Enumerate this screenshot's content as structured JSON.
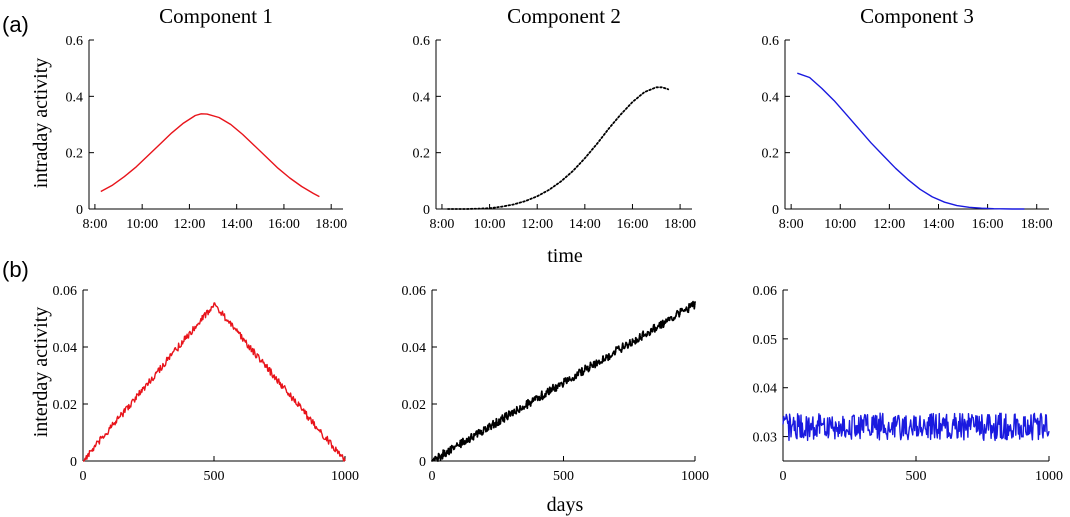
{
  "figure": {
    "panel_labels": [
      "(a)",
      "(b)"
    ],
    "row_a_ylabel": "intraday activity",
    "row_a_xlabel": "time",
    "row_b_ylabel": "interday activity",
    "row_b_xlabel": "days"
  },
  "chart_data": [
    {
      "type": "line",
      "title": "Component 1",
      "xlabel": "",
      "ylabel": "intraday activity",
      "x_unit": "hour",
      "x": [
        8.25,
        8.75,
        9.25,
        9.75,
        10.25,
        10.75,
        11.25,
        11.75,
        12.25,
        12.5,
        12.75,
        13.25,
        13.75,
        14.25,
        14.75,
        15.25,
        15.75,
        16.25,
        16.75,
        17.25,
        17.5
      ],
      "y": [
        0.062,
        0.085,
        0.115,
        0.15,
        0.19,
        0.23,
        0.27,
        0.305,
        0.332,
        0.338,
        0.337,
        0.325,
        0.3,
        0.265,
        0.225,
        0.185,
        0.145,
        0.11,
        0.08,
        0.055,
        0.044
      ],
      "xlim": [
        7.75,
        18.5
      ],
      "ylim": [
        0,
        0.6
      ],
      "xticks": [
        "8:00",
        "10:00",
        "12:00",
        "14:00",
        "16:00",
        "18:00"
      ],
      "xtick_values": [
        8,
        10,
        12,
        14,
        16,
        18
      ],
      "yticks": [
        "0",
        "0.2",
        "0.4",
        "0.6"
      ],
      "ytick_values": [
        0,
        0.2,
        0.4,
        0.6
      ],
      "color": "#e8141b",
      "style": "solid"
    },
    {
      "type": "line",
      "title": "Component 2",
      "xlabel": "time",
      "ylabel": "",
      "x_unit": "hour",
      "x": [
        8.25,
        9.0,
        9.5,
        10.0,
        10.5,
        11.0,
        11.5,
        12.0,
        12.5,
        13.0,
        13.5,
        14.0,
        14.5,
        15.0,
        15.5,
        16.0,
        16.5,
        17.0,
        17.25,
        17.5
      ],
      "y": [
        0.0,
        0.0,
        0.001,
        0.003,
        0.008,
        0.016,
        0.028,
        0.045,
        0.068,
        0.098,
        0.135,
        0.18,
        0.23,
        0.285,
        0.335,
        0.38,
        0.415,
        0.432,
        0.432,
        0.425
      ],
      "xlim": [
        7.75,
        18.5
      ],
      "ylim": [
        0,
        0.6
      ],
      "xticks": [
        "8:00",
        "10:00",
        "12:00",
        "14:00",
        "16:00",
        "18:00"
      ],
      "xtick_values": [
        8,
        10,
        12,
        14,
        16,
        18
      ],
      "yticks": [
        "0",
        "0.2",
        "0.4",
        "0.6"
      ],
      "ytick_values": [
        0,
        0.2,
        0.4,
        0.6
      ],
      "color": "#000000",
      "style": "dotted"
    },
    {
      "type": "line",
      "title": "Component 3",
      "xlabel": "",
      "ylabel": "",
      "x_unit": "hour",
      "x": [
        8.25,
        8.75,
        9.25,
        9.75,
        10.25,
        10.75,
        11.25,
        11.75,
        12.25,
        12.75,
        13.25,
        13.75,
        14.25,
        14.75,
        15.25,
        15.75,
        16.25,
        17.0,
        17.5
      ],
      "y": [
        0.482,
        0.467,
        0.428,
        0.385,
        0.335,
        0.285,
        0.235,
        0.19,
        0.145,
        0.105,
        0.07,
        0.043,
        0.024,
        0.012,
        0.006,
        0.003,
        0.001,
        0.0,
        0.0
      ],
      "xlim": [
        7.75,
        18.5
      ],
      "ylim": [
        0,
        0.6
      ],
      "xticks": [
        "8:00",
        "10:00",
        "12:00",
        "14:00",
        "16:00",
        "18:00"
      ],
      "xtick_values": [
        8,
        10,
        12,
        14,
        16,
        18
      ],
      "yticks": [
        "0",
        "0.2",
        "0.4",
        "0.6"
      ],
      "ytick_values": [
        0,
        0.2,
        0.4,
        0.6
      ],
      "color": "#1a1adf",
      "style": "solid"
    },
    {
      "type": "line",
      "title": "",
      "xlabel": "",
      "ylabel": "interday activity",
      "trend_x": [
        0,
        500,
        1000
      ],
      "trend_y": [
        0.0,
        0.055,
        0.0
      ],
      "noise_amplitude": 0.0012,
      "xlim": [
        0,
        1000
      ],
      "ylim": [
        0,
        0.06
      ],
      "xticks": [
        "0",
        "500",
        "1000"
      ],
      "xtick_values": [
        0,
        500,
        1000
      ],
      "yticks": [
        "0",
        "0.02",
        "0.04",
        "0.06"
      ],
      "ytick_values": [
        0,
        0.02,
        0.04,
        0.06
      ],
      "color": "#e8141b",
      "style": "solid"
    },
    {
      "type": "line",
      "title": "",
      "xlabel": "days",
      "ylabel": "",
      "trend_x": [
        0,
        1000
      ],
      "trend_y": [
        0.0,
        0.055
      ],
      "noise_amplitude": 0.0015,
      "xlim": [
        0,
        1000
      ],
      "ylim": [
        0,
        0.06
      ],
      "xticks": [
        "0",
        "500",
        "1000"
      ],
      "xtick_values": [
        0,
        500,
        1000
      ],
      "yticks": [
        "0",
        "0.02",
        "0.04",
        "0.06"
      ],
      "ytick_values": [
        0,
        0.02,
        0.04,
        0.06
      ],
      "color": "#000000",
      "style": "dotted"
    },
    {
      "type": "line",
      "title": "",
      "xlabel": "",
      "ylabel": "",
      "trend_x": [
        0,
        1000
      ],
      "trend_y": [
        0.032,
        0.032
      ],
      "noise_amplitude": 0.0028,
      "xlim": [
        0,
        1000
      ],
      "ylim": [
        0.025,
        0.06
      ],
      "xticks": [
        "0",
        "500",
        "1000"
      ],
      "xtick_values": [
        0,
        500,
        1000
      ],
      "yticks": [
        "0.03",
        "0.04",
        "0.05",
        "0.06"
      ],
      "ytick_values": [
        0.03,
        0.04,
        0.05,
        0.06
      ],
      "color": "#1a1adf",
      "style": "solid"
    }
  ]
}
